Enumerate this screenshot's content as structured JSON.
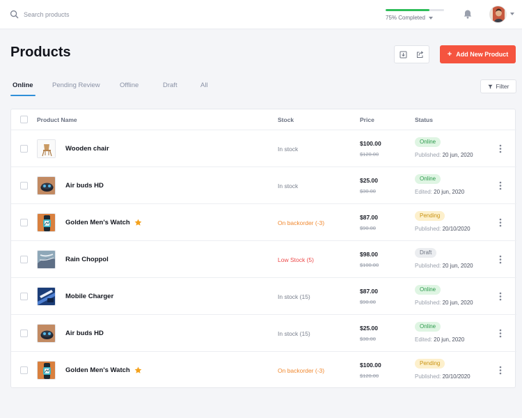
{
  "search": {
    "placeholder": "Search products"
  },
  "progress": {
    "label": "75% Completed",
    "value": 0.75,
    "color": "#2ebd59"
  },
  "header": {
    "title": "Products",
    "add_button_label": "Add New Product",
    "add_button_color": "#f5543f"
  },
  "tabs": [
    {
      "label": "Online",
      "active": true
    },
    {
      "label": "Pending Review",
      "active": false
    },
    {
      "label": "Offline",
      "active": false
    },
    {
      "label": "Draft",
      "active": false
    },
    {
      "label": "All",
      "active": false
    }
  ],
  "filter": {
    "label": "Filter"
  },
  "columns": {
    "name": "Product Name",
    "stock": "Stock",
    "price": "Price",
    "status": "Status"
  },
  "rows": [
    {
      "name": "Wooden chair",
      "thumb": "chair",
      "starred": false,
      "stock": "In stock",
      "stock_color": "#7a808e",
      "price": "$100.00",
      "old_price": "$120.00",
      "status": "Online",
      "date_prefix": "Published:",
      "date": "20 jun, 2020"
    },
    {
      "name": "Air buds HD",
      "thumb": "earbuds",
      "starred": false,
      "stock": "In stock",
      "stock_color": "#7a808e",
      "price": "$25.00",
      "old_price": "$30.00",
      "status": "Online",
      "date_prefix": "Edited:",
      "date": "20 jun, 2020"
    },
    {
      "name": "Golden Men's Watch",
      "thumb": "watch",
      "starred": true,
      "stock": "On backorder (-3)",
      "stock_color": "#f0882f",
      "price": "$87.00",
      "old_price": "$90.00",
      "status": "Pending",
      "date_prefix": "Published:",
      "date": "20/10/2020"
    },
    {
      "name": "Rain Choppol",
      "thumb": "rain",
      "starred": false,
      "stock": "Low Stock (5)",
      "stock_color": "#ec4a4a",
      "price": "$98.00",
      "old_price": "$100.00",
      "status": "Draft",
      "date_prefix": "Published:",
      "date": "20 jun, 2020"
    },
    {
      "name": "Mobile Charger",
      "thumb": "charger",
      "starred": false,
      "stock": "In stock (15)",
      "stock_color": "#7a808e",
      "price": "$87.00",
      "old_price": "$90.00",
      "status": "Online",
      "date_prefix": "Published:",
      "date": "20 jun, 2020"
    },
    {
      "name": "Air buds HD",
      "thumb": "earbuds",
      "starred": false,
      "stock": "In stock (15)",
      "stock_color": "#7a808e",
      "price": "$25.00",
      "old_price": "$30.00",
      "status": "Online",
      "date_prefix": "Edited:",
      "date": "20 jun, 2020"
    },
    {
      "name": "Golden Men's Watch",
      "thumb": "watch",
      "starred": true,
      "stock": "On backorder (-3)",
      "stock_color": "#f0882f",
      "price": "$100.00",
      "old_price": "$120.00",
      "status": "Pending",
      "date_prefix": "Published:",
      "date": "20/10/2020"
    }
  ],
  "status_colors": {
    "Online": {
      "bg": "#dff5e3",
      "fg": "#2e9b4e"
    },
    "Pending": {
      "bg": "#fdf0cc",
      "fg": "#c99313"
    },
    "Draft": {
      "bg": "#ebedf0",
      "fg": "#6f7583"
    }
  },
  "icons": {
    "search": "search-icon",
    "bell": "bell-icon",
    "import": "import-icon",
    "export": "export-icon",
    "plus": "plus-icon",
    "filter": "filter-icon",
    "more": "more-vertical-icon",
    "star": "star-icon"
  }
}
